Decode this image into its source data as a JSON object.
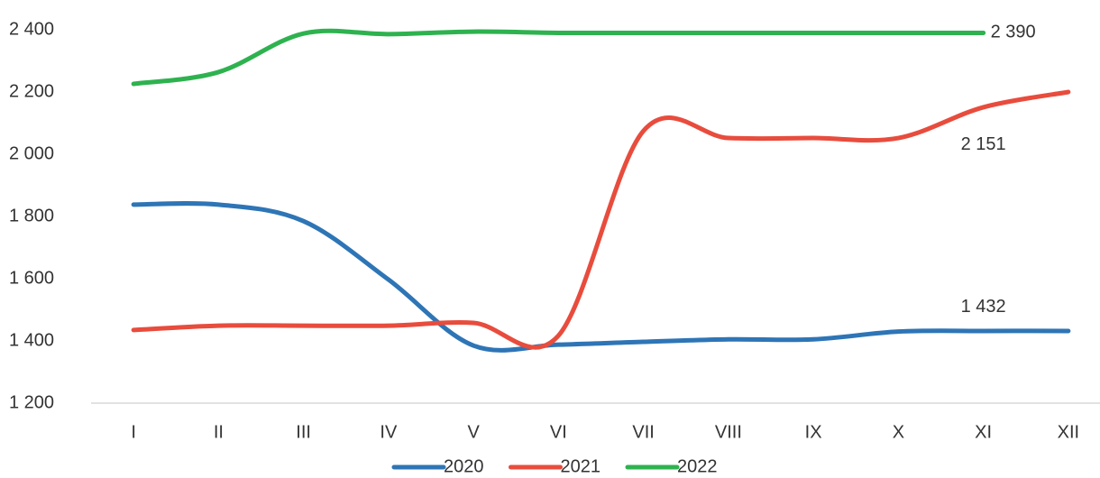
{
  "chart_data": {
    "type": "line",
    "categories": [
      "I",
      "II",
      "III",
      "IV",
      "V",
      "VI",
      "VII",
      "VIII",
      "IX",
      "X",
      "XI",
      "XII"
    ],
    "series": [
      {
        "name": "2020",
        "color": "#2e75b6",
        "values": [
          1838,
          1838,
          1785,
          1597,
          1385,
          1388,
          1397,
          1405,
          1405,
          1430,
          1432,
          1432
        ],
        "value_labels": [
          null,
          null,
          null,
          null,
          null,
          null,
          null,
          null,
          null,
          null,
          "1 432",
          null
        ]
      },
      {
        "name": "2021",
        "color": "#e84c3d",
        "values": [
          1435,
          1449,
          1449,
          1449,
          1458,
          1417,
          2075,
          2052,
          2052,
          2052,
          2151,
          2200
        ],
        "value_labels": [
          null,
          null,
          null,
          null,
          null,
          null,
          null,
          null,
          null,
          null,
          "2 151",
          null
        ]
      },
      {
        "name": "2022",
        "color": "#2eb24f",
        "values": [
          2226,
          2264,
          2388,
          2386,
          2394,
          2390,
          2390,
          2390,
          2390,
          2390,
          2390,
          null
        ],
        "value_labels": [
          null,
          null,
          null,
          null,
          null,
          null,
          null,
          null,
          null,
          null,
          "2 390",
          null
        ]
      }
    ],
    "ylim": [
      1200,
      2400
    ],
    "yticks": [
      {
        "value": 1200,
        "label": "1 200"
      },
      {
        "value": 1400,
        "label": "1 400"
      },
      {
        "value": 1600,
        "label": "1 600"
      },
      {
        "value": 1800,
        "label": "1 800"
      },
      {
        "value": 2000,
        "label": "2 000"
      },
      {
        "value": 2200,
        "label": "2 200"
      },
      {
        "value": 2400,
        "label": "2 400"
      }
    ],
    "grid": false,
    "legend": "bottom"
  }
}
